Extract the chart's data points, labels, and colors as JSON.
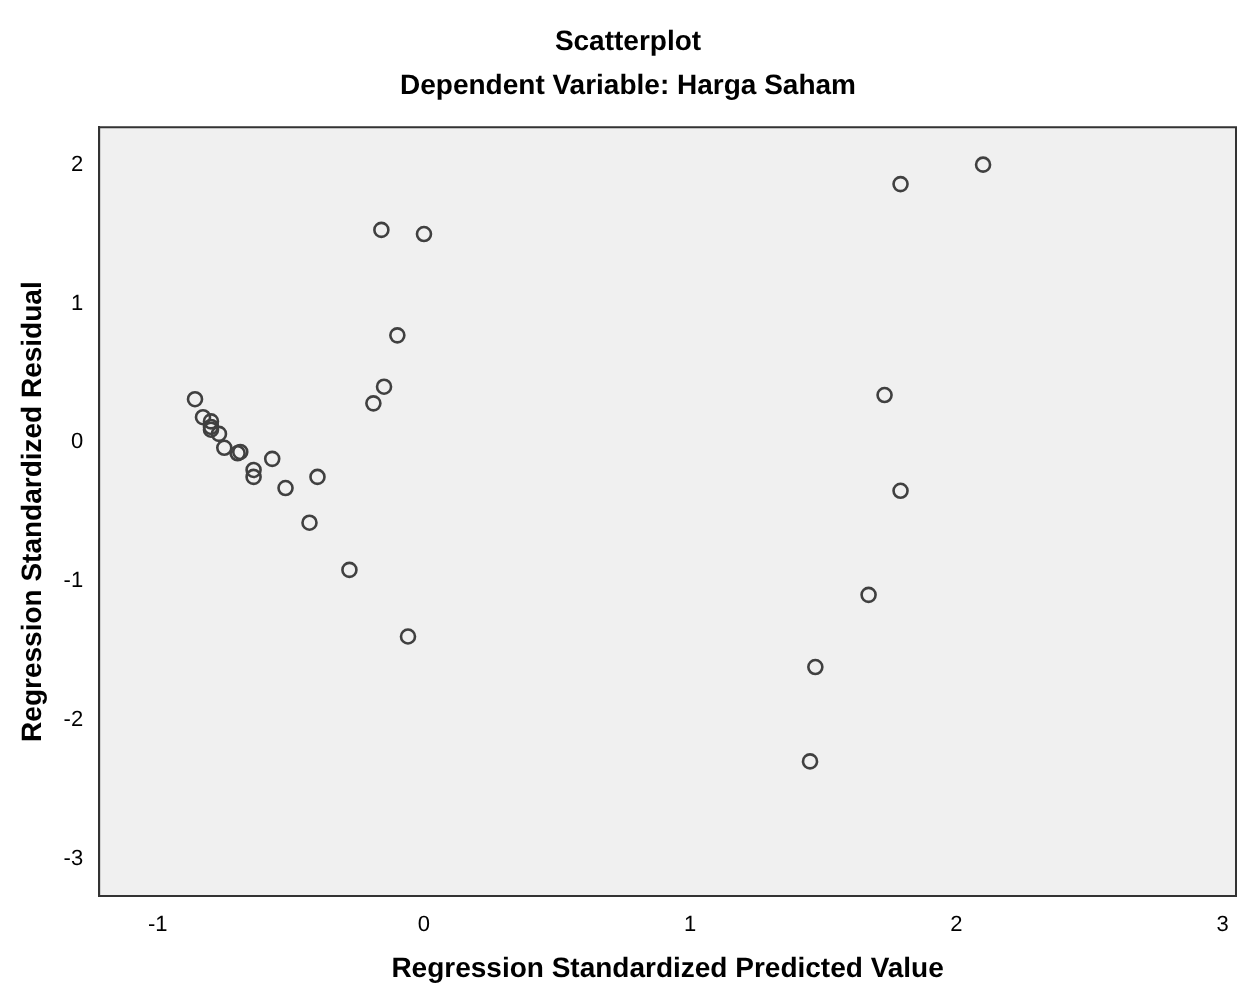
{
  "chart_data": {
    "type": "scatter",
    "title": "Scatterplot",
    "subtitle": "Dependent Variable: Harga Saham",
    "xlabel": "Regression Standardized Predicted Value",
    "ylabel": "Regression Standardized Residual",
    "x": [
      2.1,
      1.79,
      -0.16,
      0.0,
      -0.1,
      -0.15,
      -0.19,
      1.73,
      1.79,
      1.67,
      1.47,
      1.45,
      -0.86,
      -0.83,
      -0.8,
      -0.8,
      -0.8,
      -0.77,
      -0.75,
      -0.7,
      -0.69,
      -0.64,
      -0.64,
      -0.57,
      -0.52,
      -0.4,
      -0.43,
      -0.28,
      -0.06
    ],
    "series": [
      {
        "color": "#404040",
        "values": [
          2.0,
          1.86,
          1.53,
          1.5,
          0.77,
          0.4,
          0.28,
          0.34,
          -0.35,
          -1.1,
          -1.62,
          -2.3,
          0.31,
          0.18,
          0.15,
          0.11,
          0.09,
          0.06,
          -0.04,
          -0.08,
          -0.07,
          -0.2,
          -0.25,
          -0.12,
          -0.33,
          -0.25,
          -0.58,
          -0.92,
          -1.4
        ]
      }
    ],
    "xlim": [
      -1.22,
      3.05
    ],
    "xticks": [
      -1,
      0,
      1,
      2,
      3
    ],
    "ylim": [
      -3.27,
      2.27
    ],
    "yticks": [
      -3,
      -2,
      -1,
      0,
      1,
      2
    ],
    "grid": false,
    "legend": false,
    "marker": "circle"
  }
}
